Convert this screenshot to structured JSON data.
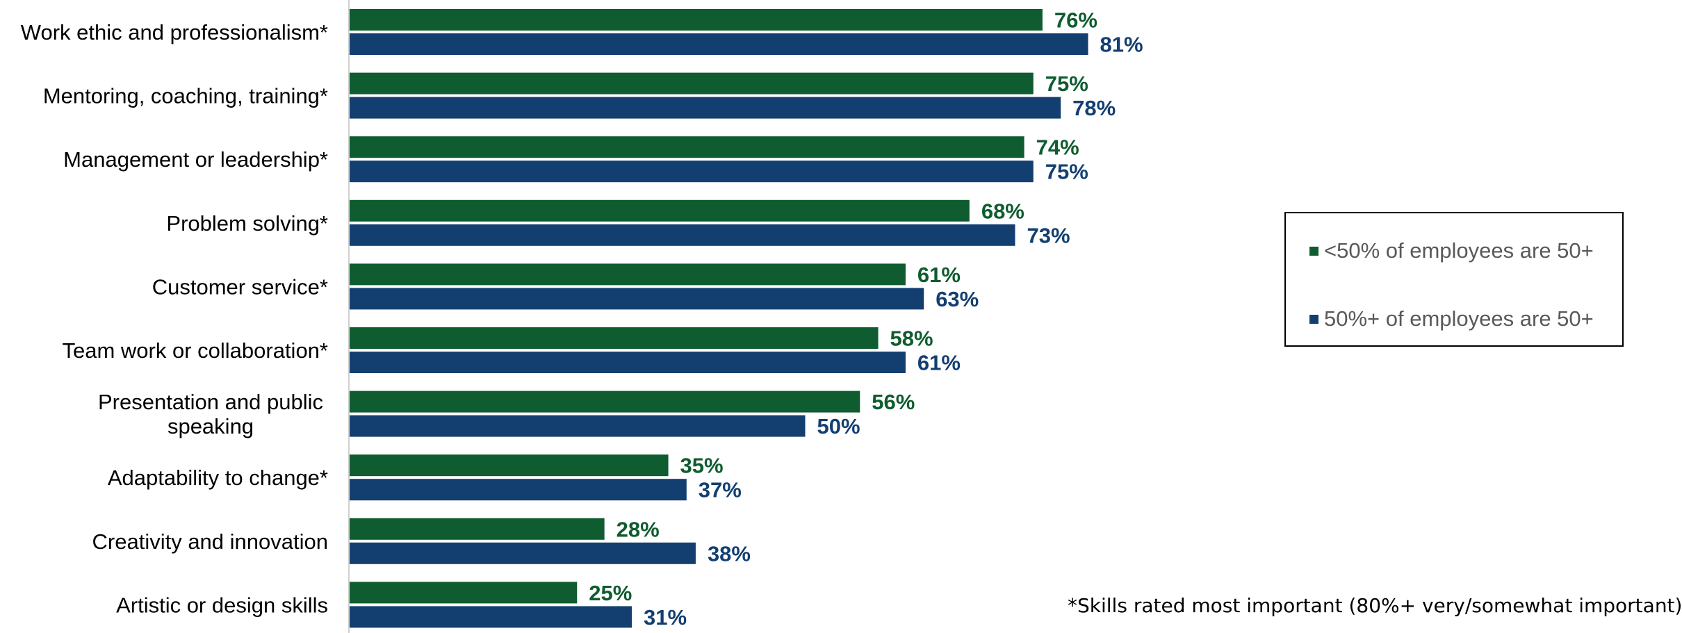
{
  "colors": {
    "series_0": "#0e5c2f",
    "series_1": "#133f70",
    "axis": "#d0d0d0"
  },
  "legend": {
    "items": [
      {
        "label": "<50% of employees are 50+",
        "color": "#0e5c2f"
      },
      {
        "label": "50%+ of employees are 50+",
        "color": "#133f70"
      }
    ]
  },
  "footnote": "*Skills rated most important (80%+ very/somewhat important)",
  "chart_data": {
    "type": "bar",
    "orientation": "horizontal",
    "categories": [
      [
        "Work ethic and professionalism*"
      ],
      [
        "Mentoring, coaching, training*"
      ],
      [
        "Management or leadership*"
      ],
      [
        "Problem solving*"
      ],
      [
        "Customer service*"
      ],
      [
        "Team work or collaboration*"
      ],
      [
        "Presentation and public",
        "speaking"
      ],
      [
        "Adaptability to change*"
      ],
      [
        "Creativity and innovation"
      ],
      [
        "Artistic or design skills"
      ]
    ],
    "series": [
      {
        "name": "<50% of employees are 50+",
        "values": [
          76,
          75,
          74,
          68,
          61,
          58,
          56,
          35,
          28,
          25
        ]
      },
      {
        "name": "50%+ of employees are 50+",
        "values": [
          81,
          78,
          75,
          73,
          63,
          61,
          50,
          37,
          38,
          31
        ]
      }
    ],
    "value_suffix": "%",
    "grid": false,
    "legend_position": "right"
  }
}
